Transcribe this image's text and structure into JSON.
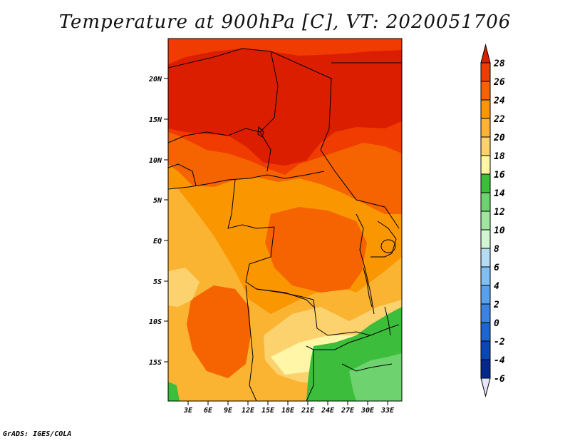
{
  "title": "Temperature at 900hPa [C], VT: 2020051706",
  "footer": "GrADS: IGES/COLA",
  "map": {
    "lat_ticks": [
      "20N",
      "15N",
      "10N",
      "5N",
      "EQ",
      "5S",
      "10S",
      "15S"
    ],
    "lon_ticks": [
      "3E",
      "6E",
      "9E",
      "12E",
      "15E",
      "18E",
      "21E",
      "24E",
      "27E",
      "30E",
      "33E"
    ]
  },
  "colorbar": {
    "levels": [
      "28",
      "26",
      "24",
      "22",
      "20",
      "18",
      "16",
      "14",
      "12",
      "10",
      "8",
      "6",
      "4",
      "2",
      "0",
      "-2",
      "-4",
      "-6"
    ],
    "colors": [
      "#dc1e00",
      "#f03c00",
      "#f56400",
      "#fa9600",
      "#fab432",
      "#fcd26e",
      "#fff6a8",
      "#3cbe3c",
      "#6ed26e",
      "#a0e6a0",
      "#d2f5d2",
      "#b4dcf5",
      "#82bef0",
      "#5aa0eb",
      "#3c82e1",
      "#1e64d2",
      "#0a46b4",
      "#05288c",
      "#03146e"
    ],
    "over_color": "#dc1e00",
    "under_color": "#e6e6fa"
  }
}
